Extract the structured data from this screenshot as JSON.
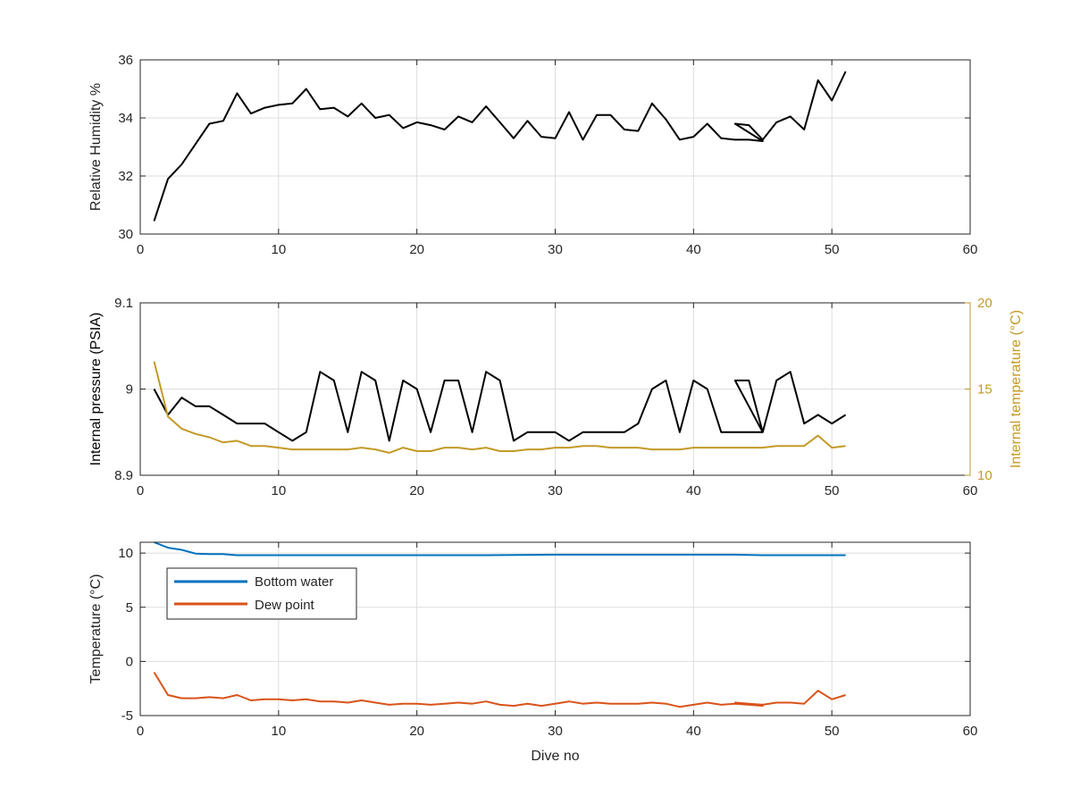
{
  "colors": {
    "black_series": "#000000",
    "orange_temp": "#C39A27",
    "bottom_water": "#0072BD",
    "dew_point": "#D95319",
    "axis_text": "#262626",
    "grid": "#dddddd"
  },
  "chart_data": [
    {
      "type": "line",
      "xlabel": "",
      "ylabel": "Relative Humidity %",
      "xlim": [
        0,
        60
      ],
      "ylim": [
        30,
        36
      ],
      "xticks": [
        0,
        10,
        20,
        30,
        40,
        50,
        60
      ],
      "yticks": [
        30,
        32,
        34,
        36
      ],
      "grid": true,
      "series": [
        {
          "name": "",
          "x": [
            1,
            2,
            3,
            4,
            5,
            6,
            7,
            8,
            9,
            10,
            11,
            12,
            13,
            14,
            15,
            16,
            17,
            18,
            19,
            20,
            21,
            22,
            23,
            24,
            25,
            26,
            27,
            28,
            29,
            30,
            31,
            32,
            33,
            34,
            35,
            36,
            37,
            38,
            39,
            40,
            41,
            42,
            43,
            44,
            45,
            43,
            44,
            45,
            46,
            47,
            48,
            49,
            50,
            51
          ],
          "y": [
            30.45,
            31.9,
            32.4,
            33.1,
            33.8,
            33.9,
            34.85,
            34.15,
            34.35,
            34.45,
            34.5,
            35.0,
            34.3,
            34.35,
            34.05,
            34.5,
            34.0,
            34.1,
            33.65,
            33.85,
            33.75,
            33.6,
            34.05,
            33.85,
            34.4,
            33.85,
            33.3,
            33.9,
            33.35,
            33.3,
            34.2,
            33.25,
            34.1,
            34.1,
            33.6,
            33.55,
            34.5,
            33.95,
            33.25,
            33.35,
            33.8,
            33.3,
            33.25,
            33.25,
            33.2,
            33.8,
            33.75,
            33.25,
            33.85,
            34.05,
            33.6,
            35.3,
            34.6,
            35.6
          ]
        }
      ]
    },
    {
      "type": "line",
      "xlabel": "",
      "ylabel": "Internal pressure (PSIA)",
      "ylabel_right": "Internal temperature (°C)",
      "xlim": [
        0,
        60
      ],
      "ylim": [
        8.9,
        9.1
      ],
      "ylim_right": [
        10,
        20
      ],
      "xticks": [
        0,
        10,
        20,
        30,
        40,
        50,
        60
      ],
      "yticks": [
        "8.9",
        "9",
        "9.1"
      ],
      "yticks_right": [
        10,
        15,
        20
      ],
      "grid": true,
      "series": [
        {
          "name": "",
          "axis": "left",
          "x": [
            1,
            2,
            3,
            4,
            5,
            6,
            7,
            8,
            9,
            10,
            11,
            12,
            13,
            14,
            15,
            16,
            17,
            18,
            19,
            20,
            21,
            22,
            23,
            24,
            25,
            26,
            27,
            28,
            29,
            30,
            31,
            32,
            33,
            34,
            35,
            36,
            37,
            38,
            39,
            40,
            41,
            42,
            43,
            44,
            45,
            43,
            44,
            45,
            46,
            47,
            48,
            49,
            50,
            51
          ],
          "y": [
            9.0,
            8.97,
            8.99,
            8.98,
            8.98,
            8.97,
            8.96,
            8.96,
            8.96,
            8.95,
            8.94,
            8.95,
            9.02,
            9.01,
            8.95,
            9.02,
            9.01,
            8.94,
            9.01,
            9.0,
            8.95,
            9.01,
            9.01,
            8.95,
            9.02,
            9.01,
            8.94,
            8.95,
            8.95,
            8.95,
            8.94,
            8.95,
            8.95,
            8.95,
            8.95,
            8.96,
            9.0,
            9.01,
            8.95,
            9.01,
            9.0,
            8.95,
            8.95,
            8.95,
            8.95,
            9.01,
            9.01,
            8.95,
            9.01,
            9.02,
            8.96,
            8.97,
            8.96,
            8.97
          ]
        },
        {
          "name": "",
          "axis": "right",
          "x": [
            1,
            2,
            3,
            4,
            5,
            6,
            7,
            8,
            9,
            10,
            11,
            12,
            13,
            14,
            15,
            16,
            17,
            18,
            19,
            20,
            21,
            22,
            23,
            24,
            25,
            26,
            27,
            28,
            29,
            30,
            31,
            32,
            33,
            34,
            35,
            36,
            37,
            38,
            39,
            40,
            41,
            42,
            43,
            44,
            45,
            46,
            47,
            48,
            49,
            50,
            51
          ],
          "y": [
            16.6,
            13.4,
            12.7,
            12.4,
            12.2,
            11.9,
            12.0,
            11.7,
            11.7,
            11.6,
            11.5,
            11.5,
            11.5,
            11.5,
            11.5,
            11.6,
            11.5,
            11.3,
            11.6,
            11.4,
            11.4,
            11.6,
            11.6,
            11.5,
            11.6,
            11.4,
            11.4,
            11.5,
            11.5,
            11.6,
            11.6,
            11.7,
            11.7,
            11.6,
            11.6,
            11.6,
            11.5,
            11.5,
            11.5,
            11.6,
            11.6,
            11.6,
            11.6,
            11.6,
            11.6,
            11.7,
            11.7,
            11.7,
            12.3,
            11.6,
            11.7
          ]
        }
      ]
    },
    {
      "type": "line",
      "xlabel": "Dive no",
      "ylabel": "Temperature (°C)",
      "xlim": [
        0,
        60
      ],
      "ylim": [
        -5,
        11
      ],
      "xticks": [
        0,
        10,
        20,
        30,
        40,
        50,
        60
      ],
      "yticks": [
        -5,
        0,
        5,
        10
      ],
      "grid": true,
      "legend_position": "top-left",
      "series": [
        {
          "name": "Bottom water",
          "x": [
            1,
            2,
            3,
            4,
            5,
            6,
            7,
            8,
            9,
            10,
            15,
            20,
            25,
            30,
            35,
            40,
            43,
            45,
            50,
            51
          ],
          "y": [
            11.0,
            10.5,
            10.3,
            9.95,
            9.9,
            9.9,
            9.8,
            9.8,
            9.8,
            9.8,
            9.8,
            9.8,
            9.8,
            9.85,
            9.85,
            9.85,
            9.85,
            9.8,
            9.8,
            9.8
          ]
        },
        {
          "name": "Dew point",
          "x": [
            1,
            2,
            3,
            4,
            5,
            6,
            7,
            8,
            9,
            10,
            11,
            12,
            13,
            14,
            15,
            16,
            17,
            18,
            19,
            20,
            21,
            22,
            23,
            24,
            25,
            26,
            27,
            28,
            29,
            30,
            31,
            32,
            33,
            34,
            35,
            36,
            37,
            38,
            39,
            40,
            41,
            42,
            43,
            44,
            45,
            43,
            44,
            45,
            46,
            47,
            48,
            49,
            50,
            51
          ],
          "y": [
            -1.0,
            -3.1,
            -3.4,
            -3.4,
            -3.3,
            -3.4,
            -3.1,
            -3.6,
            -3.5,
            -3.5,
            -3.6,
            -3.5,
            -3.7,
            -3.7,
            -3.8,
            -3.6,
            -3.8,
            -4.0,
            -3.9,
            -3.9,
            -4.0,
            -3.9,
            -3.8,
            -3.9,
            -3.7,
            -4.0,
            -4.1,
            -3.9,
            -4.1,
            -3.9,
            -3.7,
            -3.9,
            -3.8,
            -3.9,
            -3.9,
            -3.9,
            -3.8,
            -3.9,
            -4.2,
            -4.0,
            -3.8,
            -4.0,
            -3.9,
            -4.0,
            -4.1,
            -3.8,
            -3.9,
            -4.0,
            -3.8,
            -3.8,
            -3.9,
            -2.7,
            -3.5,
            -3.1
          ]
        }
      ]
    }
  ]
}
